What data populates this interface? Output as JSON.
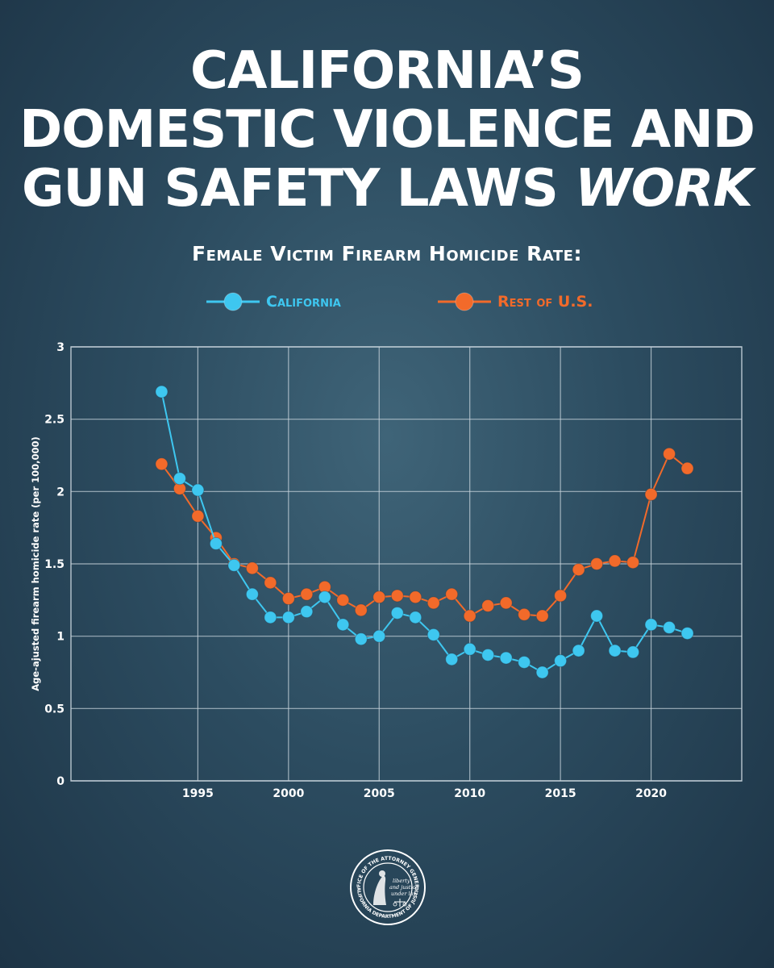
{
  "header": {
    "title_line1": "CALIFORNIA’S",
    "title_line2": "DOMESTIC VIOLENCE AND",
    "title_line3_prefix": "GUN SAFETY LAWS ",
    "title_line3_emphasis": "WORK",
    "subtitle": "Female Victim Firearm Homicide Rate:"
  },
  "colors": {
    "california": "#3ec7f0",
    "rest_of_us": "#f26a2a",
    "grid": "#c8d4dc"
  },
  "seal": {
    "ring_top": "OFFICE OF THE ATTORNEY GENERAL",
    "ring_bottom": "CALIFORNIA DEPARTMENT OF JUSTICE",
    "motto_1": "liberty",
    "motto_2": "and justice",
    "motto_3": "under law"
  },
  "chart_data": {
    "type": "line",
    "title": "Female Victim Firearm Homicide Rate:",
    "xlabel": "",
    "ylabel": "Age-ajusted firearm homicide rate (per 100,000)",
    "xlim": [
      1988,
      2025
    ],
    "ylim": [
      0,
      3
    ],
    "x_ticks": [
      1995,
      2000,
      2005,
      2010,
      2015,
      2020
    ],
    "x_tick_labels": [
      "1995",
      "2000",
      "2005",
      "2010",
      "2015",
      "2020"
    ],
    "y_ticks": [
      0,
      0.5,
      1,
      1.5,
      2,
      2.5,
      3
    ],
    "y_tick_labels": [
      "0",
      "0.5",
      "1",
      "1.5",
      "2",
      "2.5",
      "3"
    ],
    "grid": true,
    "legend_position": "top-center",
    "x": [
      1993,
      1994,
      1995,
      1996,
      1997,
      1998,
      1999,
      2000,
      2001,
      2002,
      2003,
      2004,
      2005,
      2006,
      2007,
      2008,
      2009,
      2010,
      2011,
      2012,
      2013,
      2014,
      2015,
      2016,
      2017,
      2018,
      2019,
      2020,
      2021,
      2022
    ],
    "series": [
      {
        "name": "California",
        "color": "#3ec7f0",
        "values": [
          2.69,
          2.09,
          2.01,
          1.64,
          1.49,
          1.29,
          1.13,
          1.13,
          1.17,
          1.27,
          1.08,
          0.98,
          1.0,
          1.16,
          1.13,
          1.01,
          0.84,
          0.91,
          0.87,
          0.85,
          0.82,
          0.75,
          0.83,
          0.9,
          1.14,
          0.9,
          0.89,
          1.08,
          1.06,
          1.02
        ]
      },
      {
        "name": "Rest of U.S.",
        "color": "#f26a2a",
        "values": [
          2.19,
          2.02,
          1.83,
          1.68,
          1.5,
          1.47,
          1.37,
          1.26,
          1.29,
          1.34,
          1.25,
          1.18,
          1.27,
          1.28,
          1.27,
          1.23,
          1.29,
          1.14,
          1.21,
          1.23,
          1.15,
          1.14,
          1.28,
          1.46,
          1.5,
          1.52,
          1.51,
          1.98,
          2.26,
          2.16
        ]
      }
    ]
  }
}
